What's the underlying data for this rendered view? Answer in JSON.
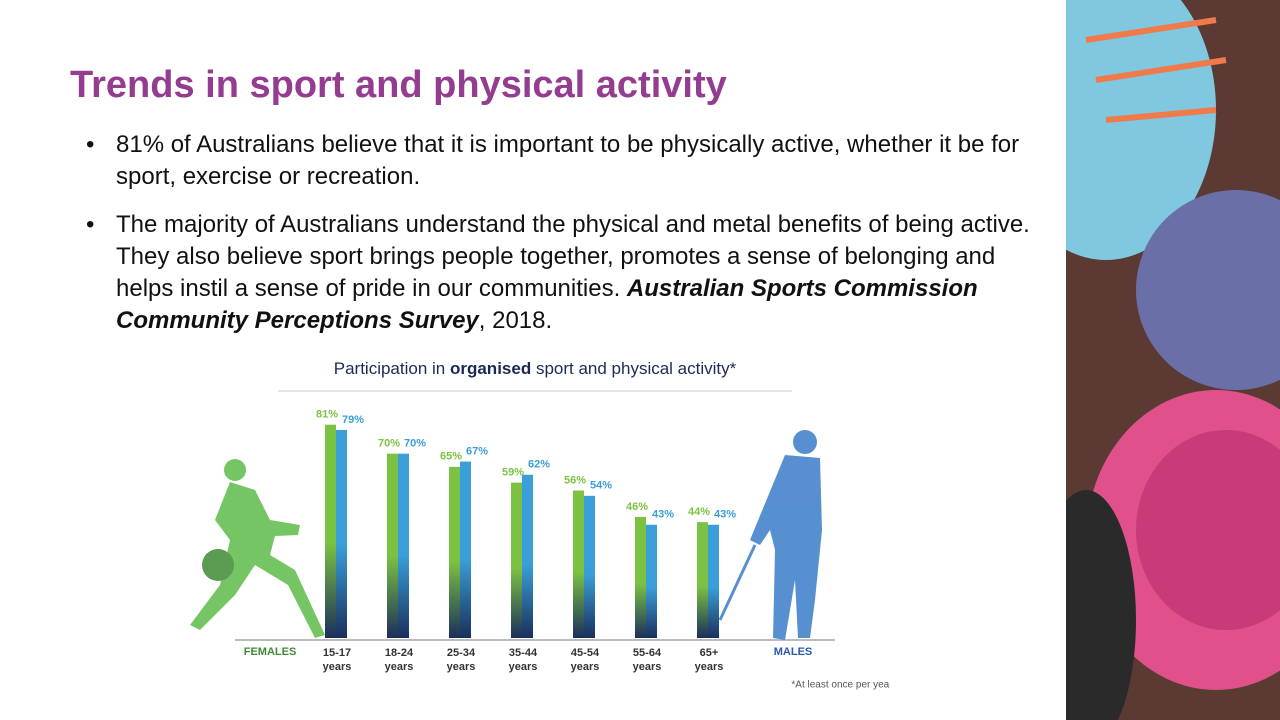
{
  "slide": {
    "title": "Trends in sport and physical activity",
    "bullets": [
      {
        "text": "81% of Australians believe that it is important to be physically active, whether it be for sport, exercise or recreation."
      },
      {
        "text": "The majority of Australians understand the physical and metal benefits of being active. They also believe sport brings people together, promotes a sense of belonging and helps instil a sense of pride in our communities.",
        "citation": "Australian Sports Commission Community Perceptions Survey",
        "citation_tail": ", 2018."
      }
    ]
  },
  "chart_data": {
    "type": "bar",
    "title_parts": [
      "Participation in ",
      "organised",
      " sport and physical activity*"
    ],
    "categories": [
      "15-17 years",
      "18-24 years",
      "25-34 years",
      "35-44 years",
      "45-54 years",
      "55-64 years",
      "65+ years"
    ],
    "series": [
      {
        "name": "FEMALES",
        "color": "#7cc242",
        "values": [
          81,
          70,
          65,
          59,
          56,
          46,
          44
        ],
        "value_labels": [
          "81%",
          "70%",
          "65%",
          "59%",
          "56%",
          "46%",
          "44%"
        ]
      },
      {
        "name": "MALES",
        "color": "#3a9fd8",
        "values": [
          79,
          70,
          67,
          62,
          54,
          43,
          43
        ],
        "value_labels": [
          "79%",
          "70%",
          "67%",
          "62%",
          "54%",
          "43%",
          "43%"
        ]
      }
    ],
    "ylim": [
      0,
      90
    ],
    "footnote": "*At least once per year"
  }
}
